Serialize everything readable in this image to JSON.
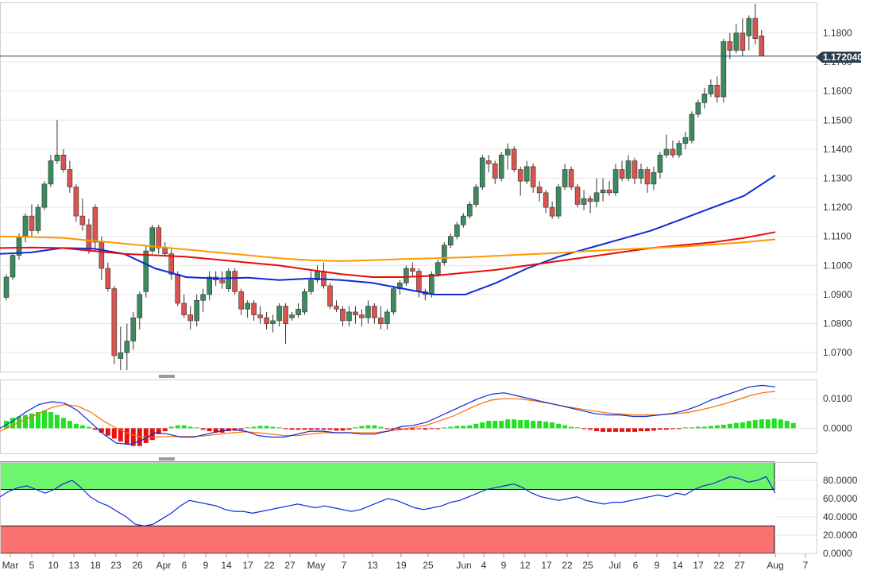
{
  "chart_data": [
    {
      "type": "candlestick",
      "y_ticks": [
        "1.0700",
        "1.0800",
        "1.0900",
        "1.1000",
        "1.1100",
        "1.1200",
        "1.1300",
        "1.1400",
        "1.1500",
        "1.1600",
        "1.1700",
        "1.1800"
      ],
      "ylim": [
        1.0635,
        1.1905
      ],
      "current_price_label": "1.172040",
      "current_price": 1.17204,
      "x_tick_labels": [
        "Mar",
        "5",
        "10",
        "13",
        "18",
        "23",
        "26",
        "Apr",
        "6",
        "9",
        "14",
        "17",
        "22",
        "27",
        "May",
        "7",
        "13",
        "19",
        "25",
        "Jun",
        "4",
        "9",
        "12",
        "17",
        "22",
        "25",
        "Jul",
        "6",
        "9",
        "14",
        "17",
        "22",
        "27",
        "Aug",
        "7"
      ],
      "candles": [
        [
          1.089,
          1.097,
          1.088,
          1.096
        ],
        [
          1.096,
          1.104,
          1.095,
          1.1035
        ],
        [
          1.1035,
          1.111,
          1.102,
          1.11
        ],
        [
          1.11,
          1.118,
          1.108,
          1.117
        ],
        [
          1.117,
          1.121,
          1.11,
          1.112
        ],
        [
          1.112,
          1.121,
          1.111,
          1.12
        ],
        [
          1.12,
          1.129,
          1.119,
          1.128
        ],
        [
          1.128,
          1.138,
          1.127,
          1.136
        ],
        [
          1.136,
          1.15,
          1.135,
          1.138
        ],
        [
          1.138,
          1.14,
          1.132,
          1.133
        ],
        [
          1.133,
          1.136,
          1.125,
          1.127
        ],
        [
          1.127,
          1.128,
          1.115,
          1.117
        ],
        [
          1.117,
          1.123,
          1.112,
          1.114
        ],
        [
          1.114,
          1.116,
          1.104,
          1.105
        ],
        [
          1.12,
          1.121,
          1.105,
          1.108
        ],
        [
          1.108,
          1.11,
          1.095,
          1.099
        ],
        [
          1.099,
          1.101,
          1.091,
          1.092
        ],
        [
          1.092,
          1.093,
          1.066,
          1.069
        ],
        [
          1.068,
          1.079,
          1.064,
          1.07
        ],
        [
          1.07,
          1.08,
          1.064,
          1.074
        ],
        [
          1.074,
          1.084,
          1.071,
          1.082
        ],
        [
          1.082,
          1.091,
          1.078,
          1.09
        ],
        [
          1.091,
          1.107,
          1.089,
          1.105
        ],
        [
          1.105,
          1.114,
          1.104,
          1.113
        ],
        [
          1.113,
          1.114,
          1.104,
          1.106
        ],
        [
          1.106,
          1.108,
          1.103,
          1.104
        ],
        [
          1.104,
          1.106,
          1.095,
          1.097
        ],
        [
          1.097,
          1.098,
          1.086,
          1.087
        ],
        [
          1.087,
          1.09,
          1.082,
          1.083
        ],
        [
          1.083,
          1.086,
          1.078,
          1.081
        ],
        [
          1.081,
          1.09,
          1.079,
          1.088
        ],
        [
          1.088,
          1.092,
          1.084,
          1.09
        ],
        [
          1.09,
          1.098,
          1.088,
          1.096
        ],
        [
          1.096,
          1.098,
          1.093,
          1.095
        ],
        [
          1.095,
          1.098,
          1.092,
          1.094
        ],
        [
          1.092,
          1.099,
          1.091,
          1.098
        ],
        [
          1.098,
          1.099,
          1.09,
          1.091
        ],
        [
          1.091,
          1.092,
          1.083,
          1.085
        ],
        [
          1.085,
          1.088,
          1.082,
          1.087
        ],
        [
          1.087,
          1.088,
          1.081,
          1.083
        ],
        [
          1.083,
          1.086,
          1.08,
          1.082
        ],
        [
          1.082,
          1.084,
          1.078,
          1.08
        ],
        [
          1.08,
          1.083,
          1.077,
          1.081
        ],
        [
          1.081,
          1.087,
          1.079,
          1.086
        ],
        [
          1.086,
          1.087,
          1.073,
          1.08
        ],
        [
          1.082,
          1.084,
          1.081,
          1.083
        ],
        [
          1.083,
          1.087,
          1.082,
          1.085
        ],
        [
          1.084,
          1.092,
          1.083,
          1.091
        ],
        [
          1.091,
          1.098,
          1.09,
          1.095
        ],
        [
          1.095,
          1.1,
          1.094,
          1.098
        ],
        [
          1.098,
          1.101,
          1.092,
          1.093
        ],
        [
          1.093,
          1.094,
          1.085,
          1.086
        ],
        [
          1.086,
          1.088,
          1.084,
          1.085
        ],
        [
          1.085,
          1.086,
          1.079,
          1.081
        ],
        [
          1.081,
          1.086,
          1.079,
          1.084
        ],
        [
          1.084,
          1.086,
          1.08,
          1.083
        ],
        [
          1.083,
          1.085,
          1.079,
          1.082
        ],
        [
          1.082,
          1.088,
          1.08,
          1.086
        ],
        [
          1.086,
          1.087,
          1.08,
          1.082
        ],
        [
          1.082,
          1.086,
          1.078,
          1.08
        ],
        [
          1.08,
          1.085,
          1.078,
          1.084
        ],
        [
          1.084,
          1.093,
          1.083,
          1.092
        ],
        [
          1.092,
          1.095,
          1.09,
          1.094
        ],
        [
          1.094,
          1.1,
          1.093,
          1.099
        ],
        [
          1.099,
          1.101,
          1.096,
          1.098
        ],
        [
          1.098,
          1.099,
          1.089,
          1.091
        ],
        [
          1.091,
          1.092,
          1.088,
          1.09
        ],
        [
          1.09,
          1.098,
          1.089,
          1.097
        ],
        [
          1.097,
          1.102,
          1.096,
          1.101
        ],
        [
          1.101,
          1.108,
          1.1,
          1.107
        ],
        [
          1.107,
          1.111,
          1.106,
          1.11
        ],
        [
          1.11,
          1.115,
          1.109,
          1.114
        ],
        [
          1.114,
          1.118,
          1.113,
          1.117
        ],
        [
          1.117,
          1.122,
          1.116,
          1.121
        ],
        [
          1.121,
          1.128,
          1.12,
          1.127
        ],
        [
          1.127,
          1.138,
          1.126,
          1.137
        ],
        [
          1.136,
          1.138,
          1.132,
          1.135
        ],
        [
          1.135,
          1.136,
          1.128,
          1.13
        ],
        [
          1.13,
          1.139,
          1.129,
          1.138
        ],
        [
          1.138,
          1.142,
          1.133,
          1.14
        ],
        [
          1.14,
          1.141,
          1.132,
          1.133
        ],
        [
          1.133,
          1.134,
          1.124,
          1.129
        ],
        [
          1.129,
          1.136,
          1.128,
          1.134
        ],
        [
          1.134,
          1.135,
          1.125,
          1.127
        ],
        [
          1.127,
          1.129,
          1.122,
          1.125
        ],
        [
          1.125,
          1.126,
          1.118,
          1.12
        ],
        [
          1.12,
          1.122,
          1.116,
          1.117
        ],
        [
          1.117,
          1.128,
          1.116,
          1.127
        ],
        [
          1.127,
          1.135,
          1.126,
          1.133
        ],
        [
          1.133,
          1.134,
          1.126,
          1.127
        ],
        [
          1.127,
          1.128,
          1.12,
          1.121
        ],
        [
          1.121,
          1.126,
          1.119,
          1.123
        ],
        [
          1.123,
          1.124,
          1.118,
          1.122
        ],
        [
          1.122,
          1.13,
          1.12,
          1.125
        ],
        [
          1.125,
          1.13,
          1.122,
          1.126
        ],
        [
          1.126,
          1.129,
          1.124,
          1.125
        ],
        [
          1.125,
          1.135,
          1.124,
          1.133
        ],
        [
          1.133,
          1.136,
          1.129,
          1.13
        ],
        [
          1.13,
          1.138,
          1.129,
          1.136
        ],
        [
          1.136,
          1.137,
          1.128,
          1.13
        ],
        [
          1.13,
          1.135,
          1.128,
          1.133
        ],
        [
          1.133,
          1.134,
          1.125,
          1.128
        ],
        [
          1.128,
          1.134,
          1.126,
          1.132
        ],
        [
          1.132,
          1.139,
          1.13,
          1.138
        ],
        [
          1.138,
          1.145,
          1.137,
          1.14
        ],
        [
          1.14,
          1.143,
          1.137,
          1.138
        ],
        [
          1.138,
          1.143,
          1.137,
          1.142
        ],
        [
          1.142,
          1.146,
          1.14,
          1.144
        ],
        [
          1.143,
          1.153,
          1.142,
          1.152
        ],
        [
          1.152,
          1.157,
          1.151,
          1.156
        ],
        [
          1.156,
          1.161,
          1.154,
          1.159
        ],
        [
          1.159,
          1.164,
          1.158,
          1.162
        ],
        [
          1.162,
          1.165,
          1.156,
          1.158
        ],
        [
          1.158,
          1.178,
          1.156,
          1.177
        ],
        [
          1.177,
          1.18,
          1.171,
          1.174
        ],
        [
          1.174,
          1.183,
          1.173,
          1.18
        ],
        [
          1.18,
          1.185,
          1.172,
          1.174
        ],
        [
          1.179,
          1.186,
          1.174,
          1.185
        ],
        [
          1.185,
          1.19,
          1.176,
          1.178
        ],
        [
          1.179,
          1.181,
          1.172,
          1.172
        ]
      ],
      "moving_averages": [
        {
          "color": "#0b2bd6",
          "start": 1.104,
          "end": 1.131
        },
        {
          "color": "#e80b0b",
          "start": 1.106,
          "end": 1.1115
        },
        {
          "color": "#ff9800",
          "start": 1.11,
          "end": 1.109
        }
      ]
    },
    {
      "type": "macd",
      "y_ticks": [
        "0.0100",
        "0.0000"
      ],
      "ylim": [
        -0.0085,
        0.0165
      ],
      "histogram": [
        0.0025,
        0.0035,
        0.004,
        0.0045,
        0.005,
        0.0055,
        0.006,
        0.0055,
        0.0045,
        0.0035,
        0.0025,
        0.0015,
        0.001,
        0.0005,
        -0.0005,
        -0.0015,
        -0.0025,
        -0.0035,
        -0.0045,
        -0.0055,
        -0.006,
        -0.006,
        -0.005,
        -0.004,
        -0.002,
        -0.001,
        0.0005,
        0.001,
        0.001,
        0.0005,
        0.0003,
        -0.0005,
        -0.001,
        -0.0015,
        -0.0015,
        -0.001,
        -0.0008,
        -0.0005,
        0.0003,
        0.0005,
        0.0008,
        0.0008,
        0.0005,
        0.0003,
        -0.0003,
        -0.0005,
        -0.0005,
        -0.0005,
        -0.0005,
        -0.0005,
        -0.0005,
        -0.0005,
        -0.0008,
        -0.0008,
        -0.0005,
        0.0003,
        0.0008,
        0.001,
        0.001,
        0.0005,
        -0.0003,
        -0.0003,
        -0.0005,
        -0.0005,
        -0.0005,
        -0.0003,
        -0.0005,
        -0.0003,
        -0.0003,
        0.0003,
        0.0005,
        0.0008,
        0.0008,
        0.001,
        0.0015,
        0.002,
        0.0025,
        0.0025,
        0.0025,
        0.003,
        0.003,
        0.0028,
        0.0028,
        0.0025,
        0.0025,
        0.0022,
        0.002,
        0.0015,
        0.001,
        0.0005,
        0.0003,
        -0.0003,
        -0.0005,
        -0.001,
        -0.0012,
        -0.0012,
        -0.0012,
        -0.0012,
        -0.0012,
        -0.0012,
        -0.001,
        -0.001,
        -0.0008,
        -0.0005,
        -0.0005,
        -0.0003,
        -0.0003,
        0.0003,
        0.0003,
        0.0005,
        0.0005,
        0.0008,
        0.001,
        0.0012,
        0.0015,
        0.0018,
        0.002,
        0.0025,
        0.0028,
        0.003,
        0.003,
        0.0033,
        0.003,
        0.0025,
        0.0018
      ],
      "macd_line_color": "#0b2bd6",
      "signal_line_color": "#ff6a00",
      "macd": [
        0.0,
        0.0025,
        0.0055,
        0.008,
        0.009,
        0.0085,
        0.006,
        0.002,
        -0.002,
        -0.005,
        -0.0055,
        -0.004,
        -0.0015,
        -0.002,
        -0.003,
        -0.003,
        -0.002,
        -0.001,
        -0.0005,
        -0.001,
        -0.0025,
        -0.003,
        -0.003,
        -0.002,
        -0.001,
        -0.001,
        -0.0015,
        -0.0015,
        -0.002,
        -0.002,
        -0.001,
        0.0005,
        0.001,
        0.002,
        0.004,
        0.006,
        0.008,
        0.01,
        0.0115,
        0.012,
        0.011,
        0.01,
        0.009,
        0.008,
        0.007,
        0.006,
        0.005,
        0.0045,
        0.0045,
        0.004,
        0.004,
        0.0045,
        0.005,
        0.006,
        0.0075,
        0.0095,
        0.011,
        0.0125,
        0.014,
        0.0145,
        0.014
      ],
      "signal": [
        -0.001,
        0.001,
        0.003,
        0.005,
        0.007,
        0.008,
        0.0075,
        0.0055,
        0.0025,
        0.0,
        -0.002,
        -0.003,
        -0.003,
        -0.0028,
        -0.0028,
        -0.0028,
        -0.0025,
        -0.002,
        -0.0015,
        -0.0012,
        -0.0015,
        -0.002,
        -0.0025,
        -0.0025,
        -0.002,
        -0.0015,
        -0.0015,
        -0.0015,
        -0.0015,
        -0.0015,
        -0.001,
        -0.0005,
        0.0003,
        0.001,
        0.0025,
        0.004,
        0.006,
        0.008,
        0.0095,
        0.01,
        0.01,
        0.0095,
        0.0088,
        0.008,
        0.0072,
        0.0065,
        0.0058,
        0.0052,
        0.0048,
        0.0045,
        0.0045,
        0.0045,
        0.0048,
        0.0052,
        0.006,
        0.007,
        0.0082,
        0.0095,
        0.011,
        0.012,
        0.0125
      ]
    },
    {
      "type": "stochastic",
      "y_ticks": [
        "80.0000",
        "60.0000",
        "40.0000",
        "20.0000",
        "0.0000"
      ],
      "ylim": [
        0,
        100
      ],
      "overbought_band": [
        70,
        100
      ],
      "oversold_band": [
        0,
        30
      ],
      "line_color": "#0b2bd6",
      "k": [
        62,
        68,
        72,
        74,
        70,
        66,
        70,
        76,
        80,
        72,
        62,
        56,
        52,
        46,
        40,
        32,
        30,
        32,
        38,
        44,
        52,
        58,
        56,
        54,
        52,
        48,
        46,
        46,
        44,
        46,
        48,
        50,
        52,
        54,
        52,
        50,
        52,
        50,
        48,
        46,
        48,
        52,
        56,
        60,
        58,
        54,
        50,
        48,
        50,
        52,
        56,
        58,
        62,
        66,
        70,
        72,
        74,
        76,
        72,
        66,
        62,
        60,
        58,
        60,
        62,
        58,
        56,
        54,
        56,
        56,
        58,
        60,
        62,
        64,
        62,
        66,
        64,
        70,
        74,
        76,
        80,
        84,
        82,
        78,
        80,
        84,
        66
      ]
    }
  ]
}
